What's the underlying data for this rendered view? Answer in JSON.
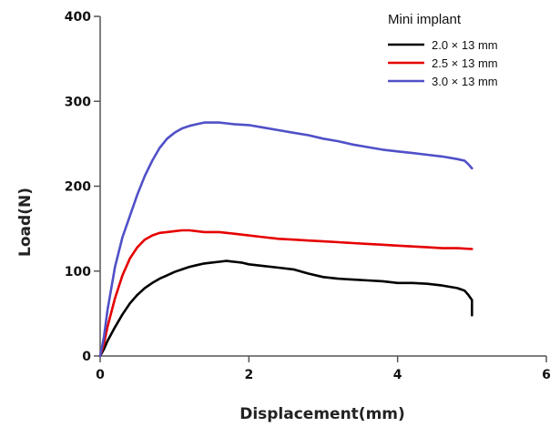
{
  "chart_data": {
    "type": "line",
    "xlabel": "Displacement(mm)",
    "ylabel": "Load(N)",
    "xlim": [
      0,
      6
    ],
    "ylim": [
      0,
      400
    ],
    "xticks": [
      "0",
      "2",
      "4",
      "6"
    ],
    "yticks": [
      "0",
      "100",
      "200",
      "300",
      "400"
    ],
    "grid": false,
    "legend": {
      "title": "Mini implant",
      "position": "top-right"
    },
    "series": [
      {
        "name": "2.0 × 13 mm",
        "color": "#000000",
        "x": [
          0,
          0.05,
          0.1,
          0.2,
          0.3,
          0.4,
          0.5,
          0.6,
          0.7,
          0.8,
          0.9,
          1.0,
          1.1,
          1.2,
          1.3,
          1.4,
          1.5,
          1.6,
          1.7,
          1.8,
          1.9,
          2.0,
          2.2,
          2.4,
          2.6,
          2.8,
          3.0,
          3.2,
          3.4,
          3.6,
          3.8,
          4.0,
          4.2,
          4.4,
          4.6,
          4.8,
          4.9,
          4.95,
          5.0,
          5.0
        ],
        "y": [
          0,
          8,
          18,
          34,
          49,
          62,
          72,
          80,
          86,
          91,
          95,
          99,
          102,
          105,
          107,
          109,
          110,
          111,
          112,
          111,
          110,
          108,
          106,
          104,
          102,
          97,
          93,
          91,
          90,
          89,
          88,
          86,
          86,
          85,
          83,
          80,
          77,
          72,
          66,
          48
        ]
      },
      {
        "name": "2.5 × 13 mm",
        "color": "#e60000",
        "x": [
          0,
          0.05,
          0.1,
          0.2,
          0.3,
          0.4,
          0.5,
          0.6,
          0.7,
          0.8,
          0.9,
          1.0,
          1.1,
          1.2,
          1.3,
          1.4,
          1.5,
          1.6,
          1.7,
          1.8,
          2.0,
          2.2,
          2.4,
          2.6,
          2.8,
          3.0,
          3.2,
          3.4,
          3.6,
          3.8,
          4.0,
          4.2,
          4.4,
          4.6,
          4.8,
          5.0
        ],
        "y": [
          0,
          14,
          35,
          68,
          95,
          115,
          128,
          137,
          142,
          145,
          146,
          147,
          148,
          148,
          147,
          146,
          146,
          146,
          145,
          144,
          142,
          140,
          138,
          137,
          136,
          135,
          134,
          133,
          132,
          131,
          130,
          129,
          128,
          127,
          127,
          126
        ]
      },
      {
        "name": "3.0 × 13 mm",
        "color": "#5050c8",
        "x": [
          0,
          0.05,
          0.1,
          0.2,
          0.3,
          0.4,
          0.5,
          0.6,
          0.7,
          0.8,
          0.9,
          1.0,
          1.1,
          1.2,
          1.3,
          1.4,
          1.5,
          1.6,
          1.7,
          1.8,
          2.0,
          2.2,
          2.4,
          2.6,
          2.8,
          3.0,
          3.2,
          3.4,
          3.6,
          3.8,
          4.0,
          4.2,
          4.4,
          4.6,
          4.8,
          4.9,
          4.95,
          5.0
        ],
        "y": [
          0,
          22,
          55,
          105,
          140,
          165,
          190,
          212,
          230,
          245,
          256,
          263,
          268,
          271,
          273,
          275,
          275,
          275,
          274,
          273,
          272,
          269,
          266,
          263,
          260,
          256,
          253,
          249,
          246,
          243,
          241,
          239,
          237,
          235,
          232,
          230,
          226,
          221
        ]
      }
    ]
  }
}
